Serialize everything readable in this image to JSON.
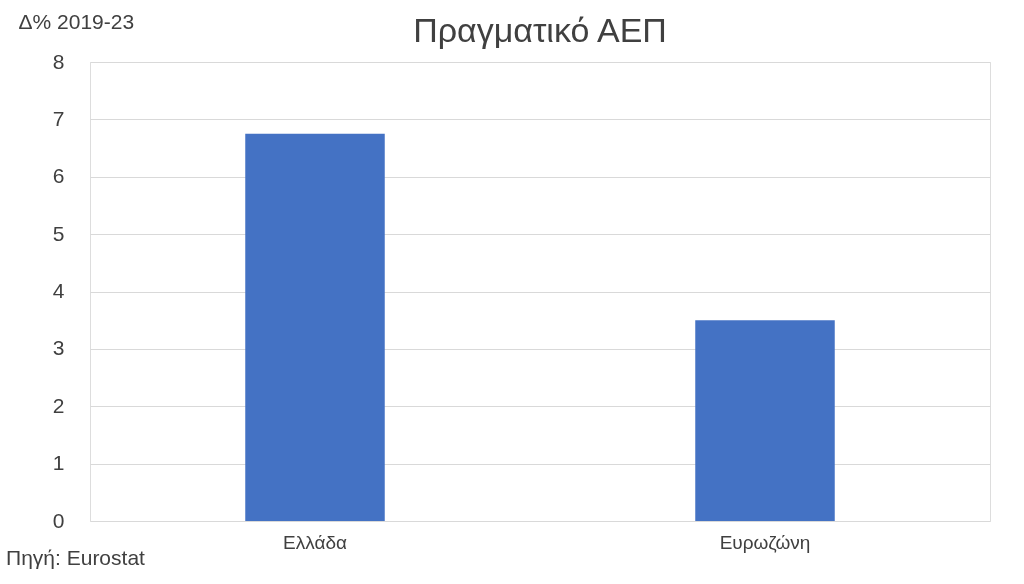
{
  "chart_data": {
    "type": "bar",
    "title": "Πραγματικό ΑΕΠ",
    "ylabel": "Δ% 2019-23",
    "categories": [
      "Ελλάδα",
      "Ευρωζώνη"
    ],
    "values": [
      6.75,
      3.5
    ],
    "color": "#4472c4",
    "ylim": [
      0,
      8
    ],
    "yticks": [
      0,
      1,
      2,
      3,
      4,
      5,
      6,
      7,
      8
    ],
    "grid": "y",
    "annotations": [
      "Πηγή: Eurostat"
    ]
  }
}
